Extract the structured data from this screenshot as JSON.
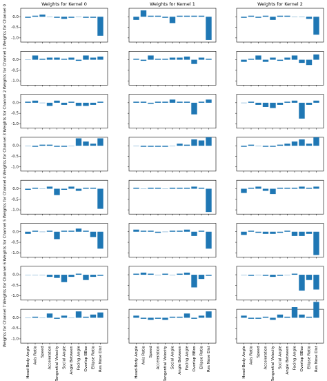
{
  "chart_data": {
    "type": "bar",
    "titles": [
      "Weights for Kernel 0",
      "Weights for Kernel 1",
      "Weights for Kernel 2"
    ],
    "categories": [
      "Head-Body Angle",
      "Axis Ratio",
      "Speed",
      "Acceleration",
      "Tangential Velocity",
      "Social Angle",
      "Angle Between",
      "Facing Angle",
      "Overlap BBox",
      "Ellipse Ratio",
      "Res Nose Dist"
    ],
    "ylim": [
      -1.2,
      0.4
    ],
    "yticks": [
      {
        "value": -1,
        "label": "-1.0"
      },
      {
        "value": -0.5,
        "label": "-0.5"
      },
      {
        "value": 0,
        "label": "0.0"
      }
    ],
    "color": "#1f77b4",
    "rows": [
      {
        "label": "Weights for Channel 0",
        "panels": [
          [
            -0.05,
            0.05,
            0.1,
            0,
            -0.05,
            -0.1,
            -0.05,
            0,
            -0.05,
            -0.05,
            -0.9
          ],
          [
            -0.15,
            0.3,
            0.05,
            0.05,
            -0.05,
            -0.3,
            0.05,
            0.05,
            0.05,
            0.05,
            -1.1
          ],
          [
            -0.05,
            0.05,
            -0.05,
            0.05,
            -0.15,
            0.05,
            0.05,
            0,
            0,
            -0.1,
            -0.85
          ]
        ]
      },
      {
        "label": "Weights for Channel 1",
        "panels": [
          [
            0,
            0.2,
            0.05,
            0.1,
            0.1,
            0.05,
            0.1,
            -0.05,
            0.2,
            0.1,
            0.15
          ],
          [
            0.05,
            -0.05,
            0.2,
            0.05,
            0.05,
            0.1,
            0.1,
            0.15,
            -0.2,
            0.1,
            0.05
          ],
          [
            -0.1,
            0.05,
            0.2,
            -0.1,
            0.1,
            -0.05,
            0.1,
            0.2,
            -0.15,
            -0.25,
            0.25
          ]
        ]
      },
      {
        "label": "Weights for Channel 2",
        "panels": [
          [
            0.05,
            0.1,
            0,
            -0.15,
            0.1,
            -0.1,
            0.05,
            -0.15,
            -0.15,
            -0.1,
            0.05
          ],
          [
            0.05,
            0.05,
            -0.05,
            0.05,
            0.05,
            0.15,
            0.05,
            0.05,
            -0.55,
            0.05,
            0.15
          ],
          [
            0,
            0.05,
            -0.1,
            -0.2,
            -0.25,
            -0.1,
            0.05,
            0.1,
            -0.75,
            -0.1,
            0.1
          ]
        ]
      },
      {
        "label": "Weights for Channel 3",
        "panels": [
          [
            0,
            -0.05,
            0.05,
            0.05,
            -0.05,
            -0.05,
            0,
            0.35,
            0.2,
            0.1,
            0.35
          ],
          [
            0,
            -0.05,
            -0.05,
            -0.05,
            -0.05,
            0,
            0.1,
            0.05,
            0.3,
            0.25,
            0.4
          ],
          [
            -0.05,
            0.05,
            0,
            -0.05,
            -0.05,
            0.05,
            0.1,
            0.2,
            0.3,
            0.1,
            0.4
          ]
        ]
      },
      {
        "label": "Weights for Channel 4",
        "panels": [
          [
            -0.05,
            0.05,
            0,
            0.1,
            -0.3,
            -0.05,
            0.1,
            -0.1,
            0.05,
            0.05,
            -0.95
          ],
          [
            0.05,
            0,
            0.05,
            0.05,
            0,
            0.05,
            0.05,
            0.05,
            0.1,
            0.05,
            -1.1
          ],
          [
            -0.2,
            0.05,
            0.1,
            -0.1,
            -0.25,
            0.05,
            0.05,
            0.05,
            0.1,
            0.05,
            0.1
          ]
        ]
      },
      {
        "label": "Weights for Channel 5",
        "panels": [
          [
            -0.1,
            0.05,
            0,
            0.05,
            -0.35,
            0.05,
            0.05,
            0.15,
            0.05,
            -0.25,
            -0.8
          ],
          [
            0.1,
            0.05,
            0.05,
            -0.05,
            0,
            0.05,
            0.05,
            0.1,
            -0.2,
            0.05,
            -0.8
          ],
          [
            -0.15,
            0.05,
            -0.05,
            -0.1,
            -0.1,
            -0.05,
            0.05,
            -0.2,
            -0.2,
            -0.1,
            -1.1
          ]
        ]
      },
      {
        "label": "Weights for Channel 6",
        "panels": [
          [
            0,
            0,
            0,
            -0.1,
            -0.15,
            -0.35,
            -0.1,
            0.05,
            -0.25,
            -0.1,
            -0.05
          ],
          [
            0.05,
            0.1,
            0.05,
            0,
            0.05,
            0,
            0.05,
            0.1,
            -0.6,
            -0.2,
            -0.05
          ],
          [
            0,
            -0.05,
            0,
            -0.05,
            -0.1,
            -0.05,
            0,
            0.05,
            -0.75,
            -0.25,
            -0.7
          ]
        ]
      },
      {
        "label": "Weights for Channel 7",
        "panels": [
          [
            0,
            0.05,
            0,
            0.2,
            -0.05,
            0.1,
            0,
            0.3,
            0.05,
            0.15,
            0.25
          ],
          [
            0.1,
            -0.05,
            -0.1,
            -0.05,
            -0.1,
            0.05,
            0.05,
            0.2,
            -0.05,
            0.1,
            0.3
          ],
          [
            0.1,
            -0.05,
            -0.05,
            0.05,
            -0.1,
            0.15,
            0.05,
            0.5,
            0.15,
            0.05,
            0.75
          ]
        ]
      }
    ]
  }
}
